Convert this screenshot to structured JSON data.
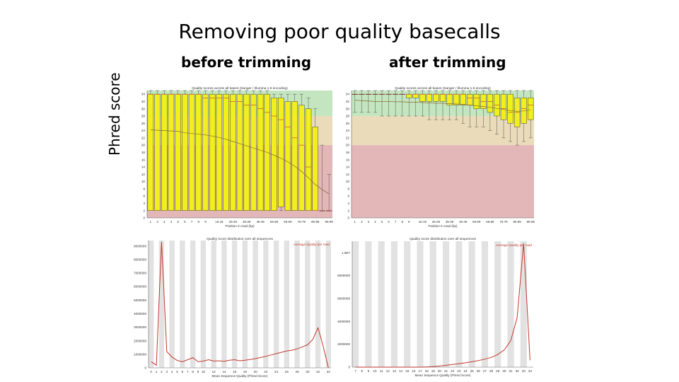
{
  "slide": {
    "title": "Removing poor quality basecalls",
    "before_label": "before trimming",
    "after_label": "after trimming",
    "y_axis_label": "Phred score"
  },
  "colors": {
    "zone_good": "#c3e6c0",
    "zone_ok": "#eadcba",
    "zone_bad": "#e3b6b8",
    "box": "#f2ef1c",
    "mean_line": "#8a6a2e",
    "dist_line": "#c0392b",
    "stripe": "#e2e2e2"
  },
  "chart_data": [
    {
      "id": "before-per-base",
      "type": "box",
      "title": "Quality scores across all bases (Sanger / Illumina 1.9 encoding)",
      "xlabel": "Position in read (bp)",
      "ylabel": "",
      "ylim": [
        0,
        35
      ],
      "yticks": [
        0,
        2,
        4,
        6,
        8,
        10,
        12,
        14,
        16,
        18,
        20,
        22,
        24,
        26,
        28,
        30,
        32,
        34
      ],
      "categories": [
        "1",
        "2",
        "3",
        "4",
        "5",
        "6",
        "7",
        "8",
        "9",
        "10-14",
        "15-19",
        "20-24",
        "25-29",
        "30-34",
        "35-39",
        "40-44",
        "45-49",
        "50-54",
        "55-59",
        "60-64",
        "65-69",
        "70-74",
        "75-79",
        "80-84",
        "85-89",
        "90-94",
        "95-99"
      ],
      "visible_tick_labels": [
        "1",
        "2",
        "3",
        "4",
        "5",
        "6",
        "7",
        "8",
        "9",
        "15-19",
        "25-29",
        "35-39",
        "45-49",
        "55-59",
        "65-69",
        "75-79",
        "85-89",
        "95-99"
      ],
      "boxes": [
        {
          "low": 2,
          "q1": 2,
          "median": 34,
          "q3": 34,
          "high": 35
        },
        {
          "low": 2,
          "q1": 2,
          "median": 34,
          "q3": 34,
          "high": 35
        },
        {
          "low": 2,
          "q1": 2,
          "median": 34,
          "q3": 34,
          "high": 35
        },
        {
          "low": 2,
          "q1": 2,
          "median": 34,
          "q3": 34,
          "high": 35
        },
        {
          "low": 2,
          "q1": 2,
          "median": 34,
          "q3": 34,
          "high": 35
        },
        {
          "low": 2,
          "q1": 2,
          "median": 34,
          "q3": 34,
          "high": 35
        },
        {
          "low": 2,
          "q1": 2,
          "median": 34,
          "q3": 34,
          "high": 35
        },
        {
          "low": 2,
          "q1": 2,
          "median": 34,
          "q3": 34,
          "high": 35
        },
        {
          "low": 2,
          "q1": 2,
          "median": 33,
          "q3": 34,
          "high": 35
        },
        {
          "low": 2,
          "q1": 2,
          "median": 33,
          "q3": 34,
          "high": 35
        },
        {
          "low": 2,
          "q1": 2,
          "median": 33,
          "q3": 34,
          "high": 35
        },
        {
          "low": 2,
          "q1": 2,
          "median": 33,
          "q3": 34,
          "high": 35
        },
        {
          "low": 2,
          "q1": 2,
          "median": 32,
          "q3": 34,
          "high": 35
        },
        {
          "low": 2,
          "q1": 2,
          "median": 32,
          "q3": 34,
          "high": 35
        },
        {
          "low": 2,
          "q1": 2,
          "median": 31,
          "q3": 34,
          "high": 35
        },
        {
          "low": 2,
          "q1": 2,
          "median": 31,
          "q3": 34,
          "high": 35
        },
        {
          "low": 2,
          "q1": 2,
          "median": 30,
          "q3": 34,
          "high": 35
        },
        {
          "low": 2,
          "q1": 2,
          "median": 29,
          "q3": 34,
          "high": 35
        },
        {
          "low": 2,
          "q1": 2,
          "median": 28,
          "q3": 33,
          "high": 34
        },
        {
          "low": 2,
          "q1": 3,
          "median": 27,
          "q3": 33,
          "high": 34
        },
        {
          "low": 2,
          "q1": 2,
          "median": 25,
          "q3": 32,
          "high": 34
        },
        {
          "low": 2,
          "q1": 2,
          "median": 22,
          "q3": 32,
          "high": 34
        },
        {
          "low": 2,
          "q1": 2,
          "median": 20,
          "q3": 31,
          "high": 34
        },
        {
          "low": 2,
          "q1": 2,
          "median": 14,
          "q3": 30,
          "high": 33
        },
        {
          "low": 2,
          "q1": 2,
          "median": 2,
          "q3": 25,
          "high": 30
        },
        {
          "low": 2,
          "q1": 2,
          "median": 2,
          "q3": 2,
          "high": 20
        },
        {
          "low": 2,
          "q1": 2,
          "median": 2,
          "q3": 2,
          "high": 12
        }
      ],
      "mean": [
        24.2,
        24.1,
        24.0,
        23.9,
        23.8,
        23.4,
        23.2,
        23.0,
        22.8,
        22.5,
        22.1,
        21.6,
        21.0,
        20.4,
        19.8,
        19.2,
        18.6,
        18.0,
        17.2,
        16.4,
        15.4,
        14.2,
        12.8,
        11.0,
        9.2,
        7.8,
        6.6
      ]
    },
    {
      "id": "after-per-base",
      "type": "box",
      "title": "Quality scores across all bases (Sanger / Illumina 1.9 encoding)",
      "xlabel": "Position in read (bp)",
      "ylabel": "",
      "ylim": [
        0,
        35
      ],
      "yticks": [
        0,
        2,
        4,
        6,
        8,
        10,
        12,
        14,
        16,
        18,
        20,
        22,
        24,
        26,
        28,
        30,
        32,
        34
      ],
      "categories": [
        "1",
        "2",
        "3",
        "4",
        "5",
        "6",
        "7",
        "8",
        "9",
        "10-14",
        "15-19",
        "20-24",
        "25-29",
        "30-34",
        "35-39",
        "40-44",
        "45-49",
        "50-54",
        "55-59",
        "60-64",
        "65-69",
        "70-74",
        "75-79",
        "80-84",
        "85-89",
        "90-94",
        "95-99"
      ],
      "visible_tick_labels": [
        "1",
        "2",
        "3",
        "4",
        "5",
        "6",
        "7",
        "8",
        "9",
        "15-19",
        "25-29",
        "35-39",
        "45-49",
        "55-59",
        "65-69",
        "75-79",
        "85-89",
        "95-99"
      ],
      "boxes": [
        {
          "low": 29,
          "q1": 34,
          "median": 34,
          "q3": 34,
          "high": 35
        },
        {
          "low": 29,
          "q1": 34,
          "median": 34,
          "q3": 34,
          "high": 35
        },
        {
          "low": 29,
          "q1": 34,
          "median": 34,
          "q3": 34,
          "high": 35
        },
        {
          "low": 29,
          "q1": 34,
          "median": 34,
          "q3": 34,
          "high": 35
        },
        {
          "low": 28,
          "q1": 34,
          "median": 34,
          "q3": 34,
          "high": 35
        },
        {
          "low": 28,
          "q1": 34,
          "median": 34,
          "q3": 34,
          "high": 35
        },
        {
          "low": 28,
          "q1": 34,
          "median": 34,
          "q3": 34,
          "high": 35
        },
        {
          "low": 28,
          "q1": 34,
          "median": 34,
          "q3": 34,
          "high": 35
        },
        {
          "low": 28,
          "q1": 33,
          "median": 34,
          "q3": 34,
          "high": 35
        },
        {
          "low": 28,
          "q1": 33,
          "median": 34,
          "q3": 34,
          "high": 35
        },
        {
          "low": 28,
          "q1": 32,
          "median": 34,
          "q3": 34,
          "high": 35
        },
        {
          "low": 27,
          "q1": 32,
          "median": 34,
          "q3": 34,
          "high": 35
        },
        {
          "low": 27,
          "q1": 32,
          "median": 34,
          "q3": 34,
          "high": 35
        },
        {
          "low": 27,
          "q1": 32,
          "median": 34,
          "q3": 34,
          "high": 35
        },
        {
          "low": 27,
          "q1": 31,
          "median": 34,
          "q3": 34,
          "high": 35
        },
        {
          "low": 27,
          "q1": 31,
          "median": 34,
          "q3": 34,
          "high": 35
        },
        {
          "low": 26,
          "q1": 31,
          "median": 34,
          "q3": 34,
          "high": 35
        },
        {
          "low": 25,
          "q1": 31,
          "median": 33,
          "q3": 34,
          "high": 35
        },
        {
          "low": 25,
          "q1": 30,
          "median": 33,
          "q3": 34,
          "high": 35
        },
        {
          "low": 25,
          "q1": 30,
          "median": 32,
          "q3": 34,
          "high": 35
        },
        {
          "low": 24,
          "q1": 29,
          "median": 32,
          "q3": 34,
          "high": 35
        },
        {
          "low": 23,
          "q1": 28,
          "median": 31,
          "q3": 34,
          "high": 35
        },
        {
          "low": 22,
          "q1": 27,
          "median": 30,
          "q3": 34,
          "high": 35
        },
        {
          "low": 21,
          "q1": 26,
          "median": 29,
          "q3": 34,
          "high": 35
        },
        {
          "low": 20,
          "q1": 25,
          "median": 29,
          "q3": 33,
          "high": 35
        },
        {
          "low": 21,
          "q1": 26,
          "median": 30,
          "q3": 33,
          "high": 35
        },
        {
          "low": 22,
          "q1": 27,
          "median": 31,
          "q3": 33,
          "high": 35
        }
      ],
      "mean": [
        32.4,
        32.2,
        32.1,
        32.0,
        32.0,
        32.0,
        31.9,
        31.9,
        31.8,
        31.8,
        31.7,
        31.6,
        31.5,
        31.5,
        31.4,
        31.3,
        31.2,
        31.0,
        30.8,
        30.6,
        30.4,
        30.1,
        29.8,
        29.5,
        29.3,
        29.4,
        29.7
      ]
    },
    {
      "id": "before-per-seq",
      "type": "line",
      "title": "Quality score distribution over all sequences",
      "xlabel": "Mean Sequence Quality (Phred Score)",
      "ylabel": "",
      "legend": "Average Quality per read",
      "legend_position": "top-right",
      "x": [
        0,
        1,
        2,
        3,
        4,
        5,
        6,
        7,
        8,
        9,
        10,
        11,
        12,
        13,
        14,
        15,
        16,
        17,
        18,
        19,
        20,
        21,
        22,
        23,
        24,
        25,
        26,
        27,
        28,
        29,
        30,
        31,
        32,
        33,
        34
      ],
      "xticks": [
        0,
        1,
        2,
        3,
        4,
        5,
        6,
        7,
        8,
        9,
        10,
        12,
        14,
        16,
        18,
        20,
        22,
        24,
        26,
        28,
        30,
        32,
        34
      ],
      "y": [
        450000,
        200000,
        9300000,
        1200000,
        800000,
        550000,
        450000,
        600000,
        750000,
        450000,
        500000,
        600000,
        500000,
        520000,
        480000,
        560000,
        600000,
        520000,
        560000,
        620000,
        680000,
        760000,
        850000,
        950000,
        1050000,
        1150000,
        1250000,
        1300000,
        1400000,
        1550000,
        1700000,
        2100000,
        2950000,
        1600000,
        0
      ],
      "ylim": [
        0,
        9400000
      ],
      "yticks": [
        0,
        1000000,
        2000000,
        3000000,
        4000000,
        5000000,
        6000000,
        7000000,
        8000000,
        9000000
      ],
      "ytick_labels": [
        "0",
        "1000000",
        "2000000",
        "3000000",
        "4000000",
        "5000000",
        "6000000",
        "7000000",
        "8000000",
        "9000000"
      ]
    },
    {
      "id": "after-per-seq",
      "type": "line",
      "title": "Quality score distribution over all sequences",
      "xlabel": "Mean Sequence Quality (Phred Score)",
      "ylabel": "",
      "legend": "Average Quality per read",
      "legend_position": "top-right",
      "x": [
        7,
        8,
        9,
        10,
        11,
        12,
        13,
        14,
        15,
        16,
        17,
        18,
        19,
        20,
        21,
        22,
        23,
        24,
        25,
        26,
        27,
        28,
        29,
        30,
        31,
        32,
        33,
        34
      ],
      "xticks": [
        7,
        8,
        9,
        10,
        11,
        12,
        13,
        14,
        15,
        16,
        17,
        18,
        19,
        20,
        21,
        22,
        23,
        24,
        25,
        26,
        27,
        28,
        29,
        30,
        31,
        32,
        33,
        34
      ],
      "y": [
        0,
        0,
        0,
        0,
        0,
        0,
        0,
        0,
        0,
        0,
        0,
        20000,
        50000,
        100000,
        160000,
        230000,
        300000,
        380000,
        470000,
        570000,
        700000,
        850000,
        1100000,
        1500000,
        2300000,
        4300000,
        10800000,
        600000
      ],
      "ylim": [
        0,
        11000000
      ],
      "yticks": [
        0,
        2000000,
        4000000,
        6000000,
        8000000,
        10000000
      ],
      "ytick_labels": [
        "0",
        "2000000",
        "4000000",
        "6000000",
        "8000000",
        "1.0E7"
      ]
    }
  ]
}
